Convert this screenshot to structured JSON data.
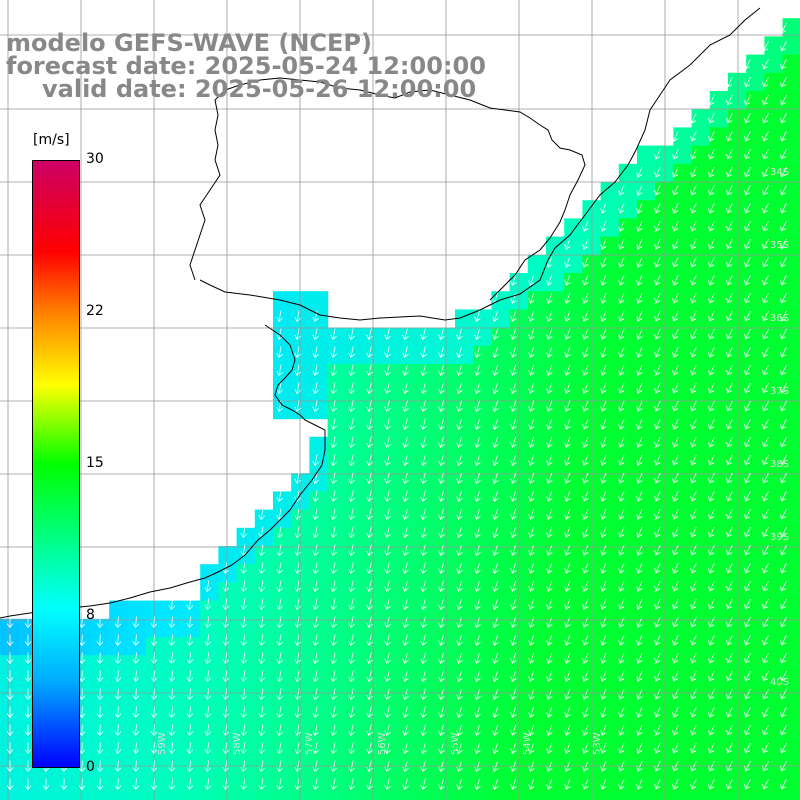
{
  "title": {
    "line1": "modelo GEFS-WAVE (NCEP)",
    "line2": "forecast date: 2025-05-24 12:00:00",
    "line3": "valid date: 2025-05-26 12:00:00"
  },
  "colorbar": {
    "unit": "[m/s]",
    "ticks": [
      "30",
      "22",
      "15",
      "8",
      "0"
    ],
    "colors": [
      "#0000ff",
      "#00aaff",
      "#00ffff",
      "#00ff00",
      "#ffff00",
      "#ff8000",
      "#ff0000",
      "#cc0066"
    ]
  },
  "map": {
    "variable": "wind speed with direction arrows",
    "longitude_labels": [
      "59W",
      "58W",
      "57W",
      "56W",
      "55W",
      "54W",
      "53W"
    ],
    "latitude_labels": [
      "34S",
      "35S",
      "36S",
      "37S",
      "38S",
      "39S",
      "40S"
    ],
    "land_color": "#ffffff",
    "grid_color": "#999999",
    "coast_color": "#000000",
    "arrow_color": "#ffffff"
  }
}
